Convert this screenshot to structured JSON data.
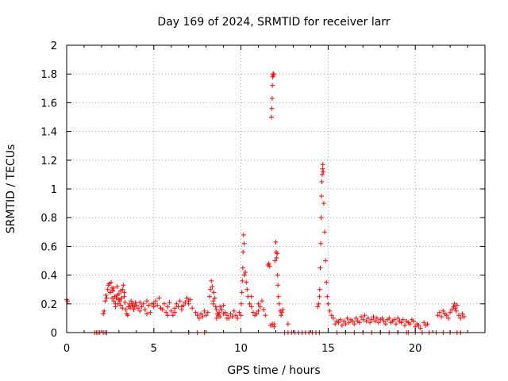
{
  "chart_data": {
    "type": "scatter",
    "title": "Day 169 of 2024, SRMTID for receiver larr",
    "xlabel": "GPS time / hours",
    "ylabel": "SRMTID / TECUs",
    "xlim": [
      0,
      24
    ],
    "ylim": [
      0,
      2
    ],
    "xticks": [
      0,
      5,
      10,
      15,
      20
    ],
    "yticks": [
      0,
      0.2,
      0.4,
      0.6,
      0.8,
      1,
      1.2,
      1.4,
      1.6,
      1.8,
      2
    ],
    "xtick_labels": [
      "0",
      "5",
      "10",
      "15",
      "20"
    ],
    "ytick_labels": [
      "0",
      "0.2",
      "0.4",
      "0.6",
      "0.8",
      "1",
      "1.2",
      "1.4",
      "1.6",
      "1.8",
      "2"
    ],
    "grid": true,
    "marker": "+",
    "color": "#ff0000",
    "series": [
      {
        "name": "SRMTID",
        "x": [
          0.0,
          0.05,
          1.6,
          1.7,
          1.8,
          1.9,
          2.1,
          2.2,
          2.3,
          2.1,
          2.15,
          2.2,
          2.25,
          2.3,
          2.35,
          2.4,
          2.45,
          2.5,
          2.55,
          2.6,
          2.65,
          2.7,
          2.75,
          2.8,
          2.85,
          2.9,
          2.95,
          3.0,
          3.05,
          3.1,
          3.15,
          3.2,
          3.25,
          3.3,
          3.35,
          3.4,
          3.45,
          3.5,
          3.55,
          3.6,
          3.65,
          3.7,
          3.75,
          3.8,
          3.85,
          3.9,
          3.95,
          2.5,
          2.6,
          2.7,
          2.8,
          2.9,
          3.0,
          3.1,
          3.2,
          3.3,
          4.0,
          4.1,
          4.2,
          4.3,
          4.4,
          4.5,
          4.6,
          4.7,
          4.8,
          4.9,
          5.0,
          5.1,
          5.2,
          5.3,
          5.4,
          5.5,
          5.6,
          5.7,
          5.8,
          5.9,
          6.0,
          6.1,
          6.2,
          6.3,
          6.4,
          6.5,
          6.6,
          6.7,
          6.8,
          6.9,
          7.0,
          7.1,
          7.2,
          4.2,
          4.6,
          5.0,
          5.4,
          5.8,
          6.2,
          6.6,
          7.0,
          7.0,
          7.5,
          7.9,
          7.4,
          7.5,
          7.6,
          7.7,
          7.8,
          7.9,
          8.0,
          8.1,
          8.2,
          8.25,
          8.3,
          8.35,
          8.4,
          8.45,
          8.5,
          8.55,
          8.6,
          8.65,
          8.7,
          8.75,
          8.8,
          8.9,
          9.0,
          9.1,
          9.2,
          9.3,
          9.4,
          9.5,
          9.6,
          9.7,
          9.8,
          9.9,
          8.4,
          8.6,
          8.8,
          9.0,
          9.2,
          10.0,
          10.02,
          10.05,
          10.08,
          10.1,
          10.12,
          10.15,
          10.18,
          10.2,
          10.25,
          10.3,
          10.35,
          10.4,
          10.5,
          10.6,
          10.7,
          10.8,
          10.9,
          11.0,
          11.1,
          11.2,
          11.3,
          11.4,
          10.6,
          11.0,
          11.55,
          11.6,
          11.65,
          11.75,
          11.77,
          11.79,
          11.8,
          11.82,
          11.84,
          11.86,
          11.88,
          11.7,
          11.8,
          11.9,
          11.9,
          11.95,
          12.0,
          12.02,
          12.05,
          12.08,
          12.1,
          12.12,
          12.15,
          12.2,
          12.25,
          12.3,
          12.35,
          12.4,
          12.7,
          12.5,
          12.7,
          12.9,
          13.1,
          13.3,
          13.5,
          13.7,
          13.9,
          14.1,
          14.3,
          14.5,
          14.4,
          14.45,
          14.5,
          14.52,
          14.55,
          14.58,
          14.6,
          14.62,
          14.64,
          14.66,
          14.68,
          14.7,
          14.72,
          14.75,
          14.8,
          14.85,
          14.9,
          14.95,
          15.0,
          15.1,
          15.2,
          15.3,
          15.4,
          15.5,
          15.6,
          15.7,
          15.8,
          15.9,
          16.0,
          16.1,
          16.2,
          16.3,
          16.4,
          16.5,
          16.6,
          16.7,
          16.8,
          16.9,
          17.0,
          17.1,
          17.2,
          17.3,
          17.4,
          17.5,
          17.6,
          17.7,
          17.8,
          17.9,
          18.0,
          18.1,
          18.2,
          18.3,
          18.4,
          18.5,
          18.6,
          18.7,
          18.8,
          18.9,
          19.0,
          19.1,
          19.2,
          19.3,
          19.4,
          19.5,
          19.6,
          19.7,
          19.8,
          19.9,
          15.5,
          16.0,
          16.5,
          17.0,
          17.5,
          18.0,
          18.5,
          19.0,
          19.5,
          20.0,
          20.1,
          20.2,
          20.3,
          20.5,
          20.6,
          20.7,
          19.6,
          20.0,
          20.4,
          20.8,
          21.2,
          21.6,
          22.0,
          22.4,
          22.6,
          21.3,
          21.4,
          21.5,
          21.6,
          21.7,
          21.8,
          21.9,
          22.0,
          22.1,
          22.2,
          22.25,
          22.3,
          22.35,
          22.4,
          22.5,
          22.6,
          22.7,
          22.8
        ],
        "y": [
          0.23,
          0.22,
          0,
          0,
          0,
          0,
          0,
          0,
          0,
          0.13,
          0.15,
          0.22,
          0.26,
          0.24,
          0.3,
          0.33,
          0.34,
          0.28,
          0.35,
          0.31,
          0.29,
          0.22,
          0.25,
          0.18,
          0.24,
          0.32,
          0.2,
          0.27,
          0.22,
          0.19,
          0.24,
          0.3,
          0.33,
          0.28,
          0.21,
          0.16,
          0.13,
          0.12,
          0.18,
          0.2,
          0.17,
          0.22,
          0.19,
          0.2,
          0.16,
          0.18,
          0.21,
          0.28,
          0.24,
          0.31,
          0.2,
          0.26,
          0.23,
          0.29,
          0.17,
          0.25,
          0.19,
          0.17,
          0.21,
          0.18,
          0.2,
          0.16,
          0.22,
          0.19,
          0.14,
          0.2,
          0.18,
          0.22,
          0.19,
          0.24,
          0.17,
          0.16,
          0.2,
          0.14,
          0.18,
          0.21,
          0.15,
          0.12,
          0.17,
          0.2,
          0.18,
          0.22,
          0.16,
          0.19,
          0.21,
          0.24,
          0.2,
          0.23,
          0.17,
          0.15,
          0.13,
          0.2,
          0.17,
          0.12,
          0.14,
          0.18,
          0.22,
          0,
          0,
          0,
          0.14,
          0.12,
          0.1,
          0.13,
          0.11,
          0.15,
          0.12,
          0.14,
          0.25,
          0.3,
          0.36,
          0.32,
          0.22,
          0.28,
          0.24,
          0.18,
          0.16,
          0.13,
          0.12,
          0.14,
          0.11,
          0.16,
          0.19,
          0.14,
          0.12,
          0.1,
          0.13,
          0.11,
          0.15,
          0.12,
          0.1,
          0.14,
          0.2,
          0.1,
          0.18,
          0.13,
          0.1,
          0.12,
          0.2,
          0.28,
          0.36,
          0.45,
          0.56,
          0.68,
          0.62,
          0.4,
          0.42,
          0.35,
          0.3,
          0.25,
          0.2,
          0.18,
          0.14,
          0.12,
          0.13,
          0.15,
          0.18,
          0.22,
          0.16,
          0.12,
          0.25,
          0.2,
          0.47,
          0.48,
          0.46,
          1.5,
          1.56,
          1.63,
          1.72,
          1.78,
          1.8,
          1.79,
          1.8,
          0.05,
          0.06,
          0.04,
          0.06,
          0.5,
          0.63,
          0.56,
          0.52,
          0.55,
          0.4,
          0.33,
          0.25,
          0.2,
          0.15,
          0.12,
          0.14,
          0.16,
          0.06,
          0,
          0,
          0,
          0,
          0,
          0,
          0,
          0,
          0,
          0,
          0,
          0.18,
          0.2,
          0.25,
          0.3,
          0.45,
          0.62,
          0.8,
          0.95,
          1.05,
          1.1,
          1.14,
          1.17,
          1.12,
          0.9,
          0.7,
          0.5,
          0.35,
          0.25,
          0.2,
          0.15,
          0.12,
          0.1,
          0.06,
          0.08,
          0.07,
          0.09,
          0.05,
          0.08,
          0.06,
          0.1,
          0.07,
          0.09,
          0.08,
          0.06,
          0.1,
          0.08,
          0.07,
          0.11,
          0.09,
          0.12,
          0.08,
          0.1,
          0.07,
          0.09,
          0.11,
          0.08,
          0.1,
          0.07,
          0.09,
          0.1,
          0.08,
          0.06,
          0.09,
          0.1,
          0.07,
          0.08,
          0.09,
          0.06,
          0.1,
          0.08,
          0.07,
          0.09,
          0.05,
          0.08,
          0.07,
          0.06,
          0.09,
          0.08,
          0,
          0,
          0,
          0,
          0,
          0,
          0,
          0,
          0,
          0.04,
          0.06,
          0.05,
          0.03,
          0.07,
          0.05,
          0.06,
          0,
          0,
          0,
          0,
          0,
          0,
          0,
          0,
          0,
          0.12,
          0.14,
          0.11,
          0.15,
          0.13,
          0.12,
          0.1,
          0.14,
          0.16,
          0.18,
          0.2,
          0.17,
          0.15,
          0.19,
          0.12,
          0.1,
          0.13,
          0.11
        ]
      }
    ]
  }
}
